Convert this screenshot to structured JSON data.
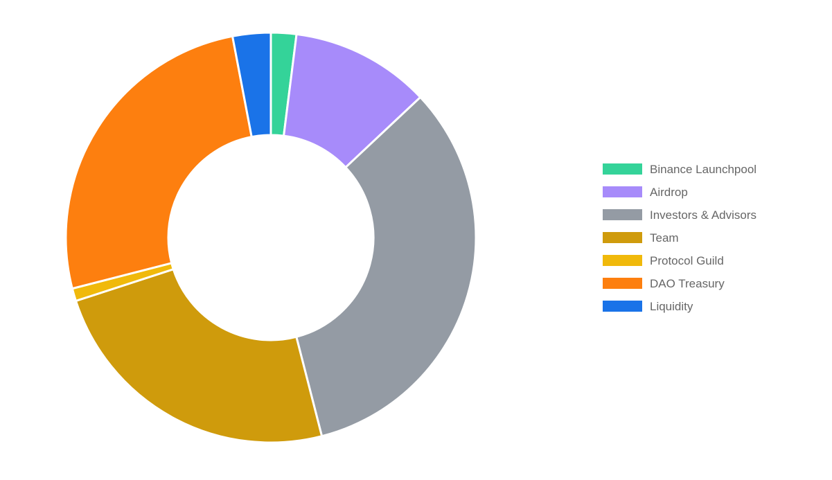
{
  "chart_data": {
    "type": "doughnut",
    "title": "",
    "legend_position": "right",
    "categories": [
      "Binance Launchpool",
      "Airdrop",
      "Investors & Advisors",
      "Team",
      "Protocol Guild",
      "DAO Treasury",
      "Liquidity"
    ],
    "values": [
      2,
      11,
      33,
      24,
      1,
      26,
      3
    ],
    "colors": [
      "#34d399",
      "#a78bfa",
      "#949ba4",
      "#cf9b0c",
      "#f0b90b",
      "#fd7f0f",
      "#1a73e8"
    ]
  }
}
